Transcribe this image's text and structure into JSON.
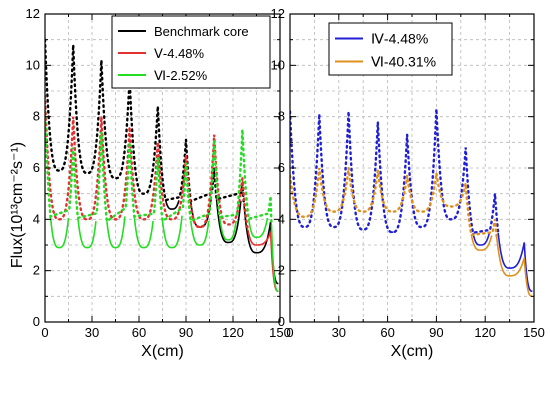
{
  "chart_data": [
    {
      "type": "line",
      "panel": "left",
      "xlabel": "X(cm)",
      "ylabel": "Flux(10¹³cm⁻²s⁻¹)",
      "xlim": [
        0,
        150
      ],
      "ylim": [
        0,
        12
      ],
      "xticks": [
        0,
        30,
        60,
        90,
        120,
        150
      ],
      "yticks": [
        0,
        2,
        4,
        6,
        8,
        10,
        12
      ],
      "grid": true,
      "legend_position": "top-right",
      "series": [
        {
          "name": "Benchmark core",
          "color": "#000000",
          "peaks": [
            [
              0,
              11.0
            ],
            [
              18,
              10.8
            ],
            [
              36,
              10.2
            ],
            [
              54,
              9.5
            ],
            [
              72,
              8.4
            ],
            [
              90,
              7.1
            ],
            [
              108,
              6.0
            ],
            [
              126,
              5.4
            ],
            [
              144,
              3.9
            ]
          ],
          "valleys": [
            [
              9,
              5.9
            ],
            [
              27,
              5.8
            ],
            [
              45,
              5.6
            ],
            [
              63,
              5.0
            ],
            [
              81,
              4.4
            ],
            [
              99,
              3.7
            ],
            [
              117,
              3.1
            ],
            [
              135,
              2.7
            ],
            [
              149,
              1.5
            ]
          ]
        },
        {
          "name": "Ⅴ-4.48%",
          "color": "#e53030",
          "peaks": [
            [
              0,
              8.8
            ],
            [
              18,
              8.0
            ],
            [
              36,
              8.0
            ],
            [
              54,
              7.6
            ],
            [
              72,
              7.0
            ],
            [
              90,
              6.5
            ],
            [
              108,
              7.3
            ],
            [
              126,
              5.6
            ],
            [
              144,
              3.5
            ]
          ],
          "valleys": [
            [
              9,
              4.0
            ],
            [
              27,
              4.0
            ],
            [
              45,
              4.0
            ],
            [
              63,
              4.0
            ],
            [
              81,
              4.0
            ],
            [
              99,
              3.7
            ],
            [
              117,
              3.8
            ],
            [
              135,
              3.0
            ],
            [
              149,
              1.2
            ]
          ]
        },
        {
          "name": "Ⅵ-2.52%",
          "color": "#22dd22",
          "peaks": [
            [
              0,
              8.2
            ],
            [
              18,
              6.8
            ],
            [
              36,
              7.4
            ],
            [
              54,
              7.0
            ],
            [
              72,
              6.4
            ],
            [
              90,
              6.2
            ],
            [
              108,
              7.1
            ],
            [
              126,
              7.5
            ],
            [
              144,
              4.9
            ]
          ],
          "valleys": [
            [
              9,
              2.9
            ],
            [
              27,
              2.9
            ],
            [
              45,
              2.9
            ],
            [
              63,
              2.9
            ],
            [
              81,
              2.9
            ],
            [
              99,
              3.0
            ],
            [
              117,
              3.2
            ],
            [
              135,
              3.3
            ],
            [
              149,
              1.2
            ]
          ]
        }
      ]
    },
    {
      "type": "line",
      "panel": "right",
      "xlabel": "X(cm)",
      "ylabel": "",
      "xlim": [
        0,
        150
      ],
      "ylim": [
        0,
        12
      ],
      "xticks": [
        0,
        30,
        60,
        90,
        120,
        150
      ],
      "yticks": [
        0,
        2,
        4,
        6,
        8,
        10,
        12
      ],
      "grid": true,
      "legend_position": "top-left",
      "series": [
        {
          "name": "Ⅳ-4.48%",
          "color": "#1f1fd6",
          "peaks": [
            [
              0,
              8.2
            ],
            [
              18,
              8.1
            ],
            [
              36,
              8.2
            ],
            [
              54,
              7.8
            ],
            [
              72,
              7.3
            ],
            [
              90,
              8.3
            ],
            [
              108,
              6.8
            ],
            [
              126,
              5.0
            ],
            [
              144,
              3.1
            ]
          ],
          "valleys": [
            [
              9,
              3.7
            ],
            [
              27,
              3.7
            ],
            [
              45,
              3.6
            ],
            [
              63,
              3.5
            ],
            [
              81,
              3.7
            ],
            [
              99,
              4.0
            ],
            [
              117,
              3.0
            ],
            [
              135,
              2.1
            ],
            [
              149,
              1.2
            ]
          ]
        },
        {
          "name": "Ⅵ-40.31%",
          "color": "#e0901c",
          "peaks": [
            [
              0,
              5.7
            ],
            [
              18,
              6.0
            ],
            [
              36,
              6.0
            ],
            [
              54,
              5.9
            ],
            [
              72,
              5.7
            ],
            [
              90,
              5.8
            ],
            [
              108,
              5.4
            ],
            [
              126,
              4.0
            ],
            [
              144,
              2.5
            ]
          ],
          "valleys": [
            [
              9,
              4.1
            ],
            [
              27,
              4.3
            ],
            [
              45,
              4.3
            ],
            [
              63,
              4.3
            ],
            [
              81,
              4.3
            ],
            [
              99,
              4.5
            ],
            [
              117,
              2.8
            ],
            [
              135,
              1.8
            ],
            [
              149,
              1.0
            ]
          ]
        }
      ]
    }
  ]
}
